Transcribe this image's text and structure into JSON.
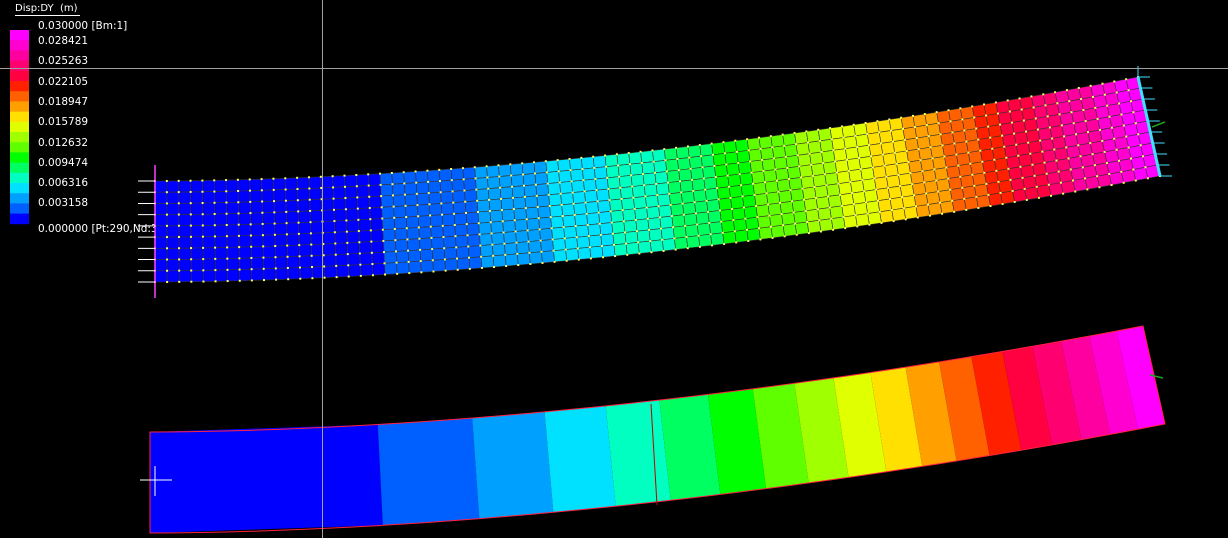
{
  "legend": {
    "title": "Disp:DY  (m)",
    "max_label": "0.030000 [Bm:1]",
    "min_label": "0.000000 [Pt:290,Nd:3]",
    "tick_labels": [
      "0.028421",
      "0.025263",
      "0.022105",
      "0.018947",
      "0.015789",
      "0.012632",
      "0.009474",
      "0.006316",
      "0.003158"
    ],
    "colors": [
      "#ff00ff",
      "#ff00d0",
      "#ff00a0",
      "#ff0070",
      "#ff0040",
      "#ff2000",
      "#ff6000",
      "#ffa000",
      "#ffe000",
      "#e0ff00",
      "#a0ff00",
      "#60ff00",
      "#00ff00",
      "#00ff60",
      "#00ffc0",
      "#00e0ff",
      "#00a0ff",
      "#0060ff",
      "#0000ff"
    ]
  },
  "colors": {
    "mesh_line": "#333333",
    "node": "#ffff66",
    "outline": "#ff2040",
    "crosshair": "#a0a0a0",
    "support": "#40e0ff"
  }
}
